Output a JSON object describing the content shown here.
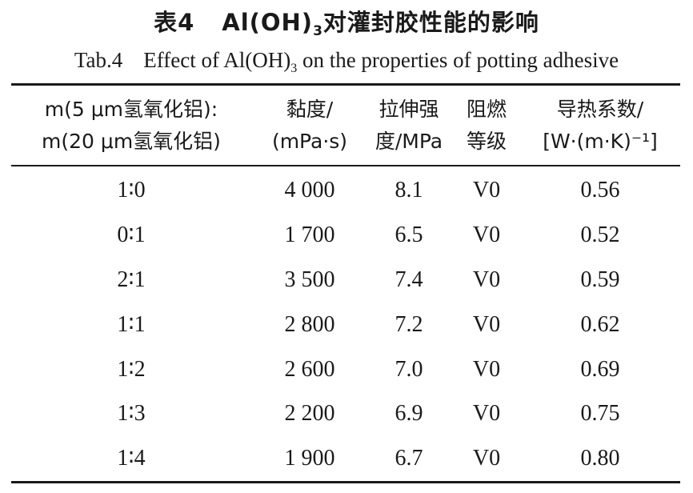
{
  "caption": {
    "cn_label": "表4",
    "cn_text_before": "Al(OH)",
    "cn_sub": "3",
    "cn_text_after": "对灌封胶性能的影响",
    "en_label": "Tab.4",
    "en_text_before": "Effect of Al(OH)",
    "en_sub": "3",
    "en_text_after": " on the properties of potting adhesive"
  },
  "table": {
    "headers": [
      [
        "m(5 μm氢氧化铝):",
        "m(20 μm氢氧化铝)"
      ],
      [
        "黏度/",
        "(mPa·s)"
      ],
      [
        "拉伸强",
        "度/MPa"
      ],
      [
        "阻燃",
        "等级"
      ],
      [
        "导热系数/",
        "[W·(m·K)⁻¹]"
      ]
    ],
    "rows": [
      [
        "1∶0",
        "4 000",
        "8.1",
        "V0",
        "0.56"
      ],
      [
        "0∶1",
        "1 700",
        "6.5",
        "V0",
        "0.52"
      ],
      [
        "2∶1",
        "3 500",
        "7.4",
        "V0",
        "0.59"
      ],
      [
        "1∶1",
        "2 800",
        "7.2",
        "V0",
        "0.62"
      ],
      [
        "1∶2",
        "2 600",
        "7.0",
        "V0",
        "0.69"
      ],
      [
        "1∶3",
        "2 200",
        "6.9",
        "V0",
        "0.75"
      ],
      [
        "1∶4",
        "1 900",
        "6.7",
        "V0",
        "0.80"
      ]
    ]
  }
}
